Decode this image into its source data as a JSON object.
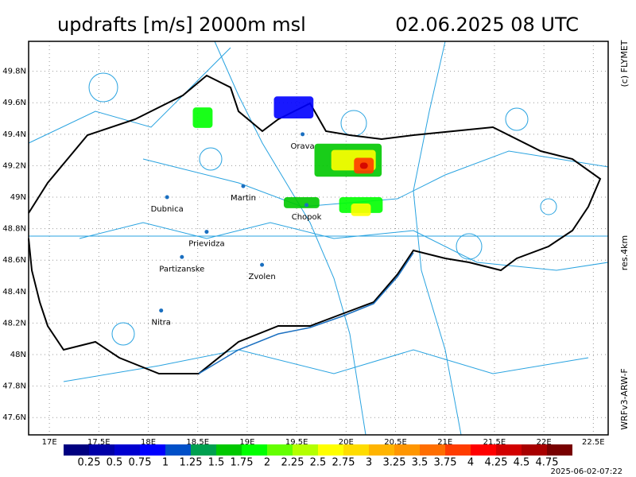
{
  "header": {
    "title": "updrafts [m/s] 2000m msl",
    "datetime": "02.06.2025 08 UTC"
  },
  "side": {
    "copyright": "(c) FLYMET",
    "resolution": "res.4km",
    "model": "WRFv3-ARW-F"
  },
  "timestamp": "2025-06-02-07:22",
  "map": {
    "xlim": [
      16.79,
      22.65
    ],
    "ylim": [
      47.49,
      49.99
    ],
    "xticks": [
      {
        "value": 17,
        "label": "17E"
      },
      {
        "value": 17.5,
        "label": "17.5E"
      },
      {
        "value": 18,
        "label": "18E"
      },
      {
        "value": 18.5,
        "label": "18.5E"
      },
      {
        "value": 19,
        "label": "19E"
      },
      {
        "value": 19.5,
        "label": "19.5E"
      },
      {
        "value": 20,
        "label": "20E"
      },
      {
        "value": 20.5,
        "label": "20.5E"
      },
      {
        "value": 21,
        "label": "21E"
      },
      {
        "value": 21.5,
        "label": "21.5E"
      },
      {
        "value": 22,
        "label": "22E"
      },
      {
        "value": 22.5,
        "label": "22.5E"
      }
    ],
    "yticks": [
      {
        "value": 47.6,
        "label": "47.6N"
      },
      {
        "value": 47.8,
        "label": "47.8N"
      },
      {
        "value": 48,
        "label": "48N"
      },
      {
        "value": 48.2,
        "label": "48.2N"
      },
      {
        "value": 48.4,
        "label": "48.4N"
      },
      {
        "value": 48.6,
        "label": "48.6N"
      },
      {
        "value": 48.8,
        "label": "48.8N"
      },
      {
        "value": 49,
        "label": "49N"
      },
      {
        "value": 49.2,
        "label": "49.2N"
      },
      {
        "value": 49.4,
        "label": "49.4N"
      },
      {
        "value": 49.6,
        "label": "49.6N"
      },
      {
        "value": 49.8,
        "label": "49.8N"
      }
    ],
    "cities": [
      {
        "name": "Orava",
        "lon": 19.56,
        "lat": 49.4
      },
      {
        "name": "Martin",
        "lon": 18.96,
        "lat": 49.07
      },
      {
        "name": "Dubnica",
        "lon": 18.19,
        "lat": 49.0
      },
      {
        "name": "Chopok",
        "lon": 19.6,
        "lat": 48.95
      },
      {
        "name": "Prievidza",
        "lon": 18.59,
        "lat": 48.78
      },
      {
        "name": "Partizanske",
        "lon": 18.34,
        "lat": 48.62
      },
      {
        "name": "Zvolen",
        "lon": 19.15,
        "lat": 48.57
      },
      {
        "name": "Nitra",
        "lon": 18.13,
        "lat": 48.28
      }
    ],
    "updraft_cells": [
      {
        "lon": [
          18.45,
          18.65
        ],
        "lat": [
          49.44,
          49.57
        ],
        "value": 1.75
      },
      {
        "lon": [
          19.27,
          19.67
        ],
        "lat": [
          49.5,
          49.64
        ],
        "value": 0.75
      },
      {
        "lon": [
          19.68,
          20.36
        ],
        "lat": [
          49.13,
          49.34
        ],
        "value": 1.5
      },
      {
        "lon": [
          19.85,
          20.3
        ],
        "lat": [
          49.17,
          49.3
        ],
        "value": 2.5
      },
      {
        "lon": [
          20.08,
          20.28
        ],
        "lat": [
          49.15,
          49.25
        ],
        "value": 3.75
      },
      {
        "lon": [
          20.14,
          20.22
        ],
        "lat": [
          49.18,
          49.22
        ],
        "value": 4.25
      },
      {
        "lon": [
          19.37,
          19.73
        ],
        "lat": [
          48.93,
          49.0
        ],
        "value": 1.5
      },
      {
        "lon": [
          19.93,
          20.37
        ],
        "lat": [
          48.9,
          49.0
        ],
        "value": 1.75
      },
      {
        "lon": [
          20.05,
          20.25
        ],
        "lat": [
          48.88,
          48.96
        ],
        "value": 2.5
      }
    ]
  },
  "colorbar": {
    "colors": [
      "#000080",
      "#0000a8",
      "#0000d0",
      "#0000ff",
      "#0050c8",
      "#00a050",
      "#00c800",
      "#00ff00",
      "#64ff00",
      "#b4ff00",
      "#ffff00",
      "#ffdc00",
      "#ffb400",
      "#ff9600",
      "#ff6e00",
      "#ff3c00",
      "#ff0000",
      "#d20000",
      "#a80000",
      "#780000"
    ],
    "labels": [
      0.25,
      0.5,
      0.75,
      1,
      1.25,
      1.5,
      1.75,
      2,
      2.25,
      2.5,
      2.75,
      3,
      3.25,
      3.5,
      3.75,
      4,
      4.25,
      4.5,
      4.75
    ]
  }
}
